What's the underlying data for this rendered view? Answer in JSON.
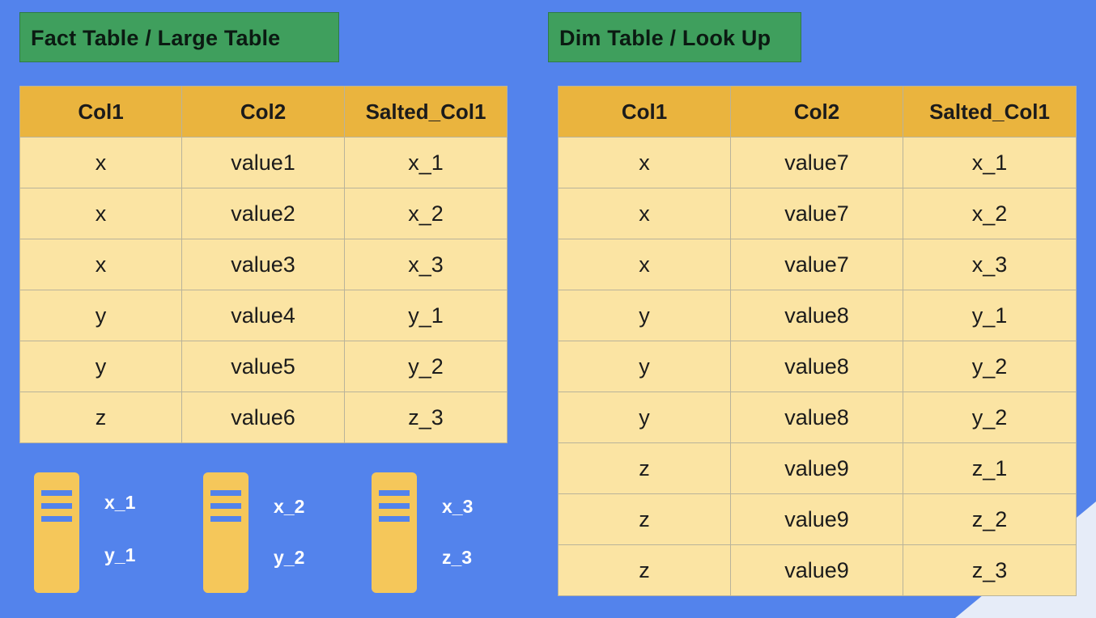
{
  "fact": {
    "title": "Fact Table / Large Table",
    "headers": [
      "Col1",
      "Col2",
      "Salted_Col1"
    ],
    "rows": [
      [
        "x",
        "value1",
        "x_1"
      ],
      [
        "x",
        "value2",
        "x_2"
      ],
      [
        "x",
        "value3",
        "x_3"
      ],
      [
        "y",
        "value4",
        "y_1"
      ],
      [
        "y",
        "value5",
        "y_2"
      ],
      [
        "z",
        "value6",
        "z_3"
      ]
    ]
  },
  "dim": {
    "title": "Dim Table / Look Up",
    "headers": [
      "Col1",
      "Col2",
      "Salted_Col1"
    ],
    "rows": [
      [
        "x",
        "value7",
        "x_1"
      ],
      [
        "x",
        "value7",
        "x_2"
      ],
      [
        "x",
        "value7",
        "x_3"
      ],
      [
        "y",
        "value8",
        "y_1"
      ],
      [
        "y",
        "value8",
        "y_2"
      ],
      [
        "y",
        "value8",
        "y_2"
      ],
      [
        "z",
        "value9",
        "z_1"
      ],
      [
        "z",
        "value9",
        "z_2"
      ],
      [
        "z",
        "value9",
        "z_3"
      ]
    ]
  },
  "partitions": [
    {
      "keys": [
        "x_1",
        "y_1"
      ]
    },
    {
      "keys": [
        "x_2",
        "y_2"
      ]
    },
    {
      "keys": [
        "x_3",
        "z_3"
      ]
    }
  ],
  "colors": {
    "background": "#5383ec",
    "title_box": "#3f9f5d",
    "header": "#eab43e",
    "cell": "#fbe4a3",
    "partition": "#f5c75a"
  }
}
